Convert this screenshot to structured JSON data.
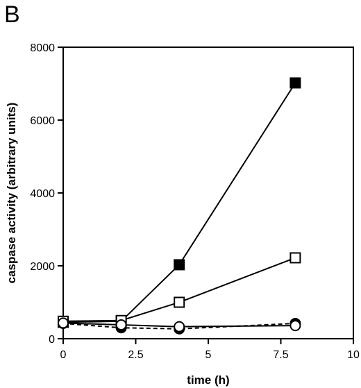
{
  "panel_label": "B",
  "chart_data": {
    "type": "line",
    "title": "",
    "xlabel": "time (h)",
    "ylabel": "caspase activity (arbitrary units)",
    "xlim": [
      0,
      10
    ],
    "ylim": [
      0,
      8000
    ],
    "xticks": [
      0,
      2.5,
      5,
      7.5,
      10
    ],
    "xtick_labels": [
      "0",
      "2.5",
      "5",
      "7.5",
      "10"
    ],
    "yticks": [
      0,
      2000,
      4000,
      6000,
      8000
    ],
    "ytick_labels": [
      "0",
      "2000",
      "4000",
      "6000",
      "8000"
    ],
    "grid": false,
    "legend": "none",
    "series": [
      {
        "marker": "filled-square",
        "line": "solid",
        "color": "#000000",
        "x": [
          0,
          2,
          4,
          8
        ],
        "y": [
          450,
          480,
          2030,
          7020
        ]
      },
      {
        "marker": "open-square",
        "line": "solid",
        "color": "#000000",
        "x": [
          0,
          2,
          4,
          8
        ],
        "y": [
          480,
          500,
          1000,
          2220
        ]
      },
      {
        "marker": "filled-circle",
        "line": "dashed",
        "color": "#000000",
        "x": [
          0,
          2,
          4,
          8
        ],
        "y": [
          420,
          300,
          270,
          420
        ]
      },
      {
        "marker": "open-circle",
        "line": "solid",
        "color": "#000000",
        "x": [
          0,
          2,
          4,
          8
        ],
        "y": [
          430,
          380,
          330,
          360
        ]
      }
    ]
  }
}
